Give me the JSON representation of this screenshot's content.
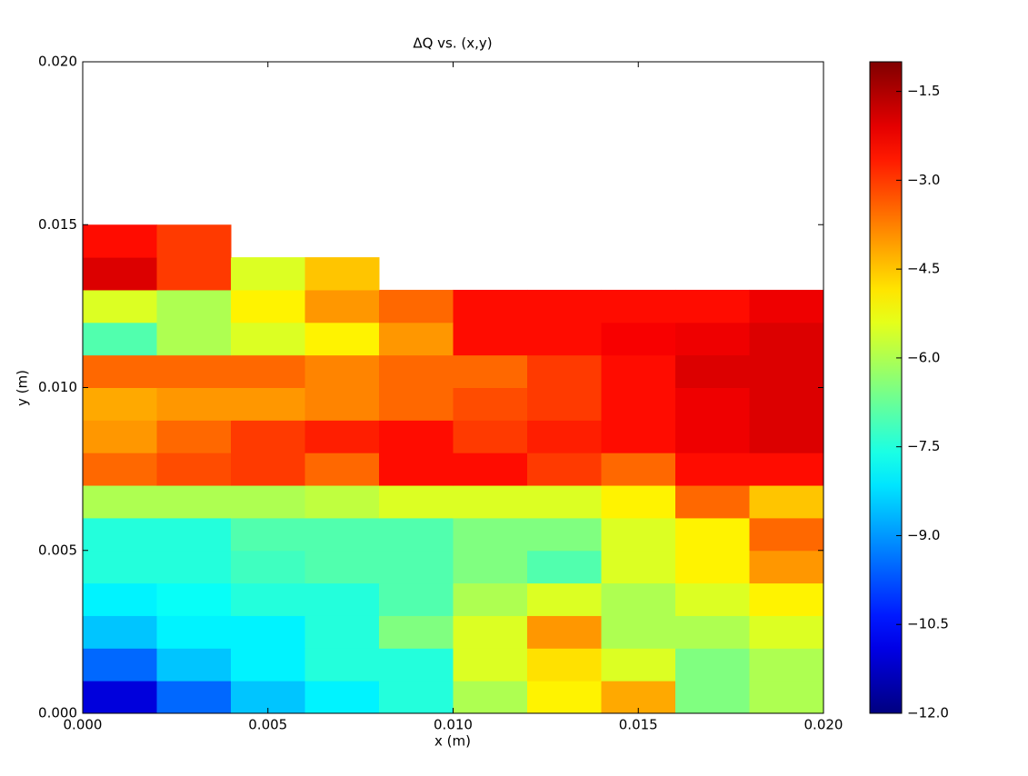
{
  "chart_data": {
    "type": "heatmap",
    "title": "ΔQ vs. (x,y)",
    "x_label": "x (m)",
    "y_label": "y (m)",
    "colormap": "jet",
    "x": [
      0.001,
      0.003,
      0.005,
      0.007,
      0.009,
      0.011,
      0.013,
      0.015,
      0.017,
      0.019
    ],
    "y": [
      0.0005,
      0.0015,
      0.0025,
      0.0035,
      0.0045,
      0.0055,
      0.0065,
      0.0075,
      0.0085,
      0.0095,
      0.0105,
      0.0115,
      0.0125,
      0.0135,
      0.0145
    ],
    "values": [
      [
        -11,
        -9.5,
        -8.5,
        -8,
        -7.5,
        -6,
        -5,
        -4.2,
        -6.5,
        -6
      ],
      [
        -9.5,
        -8.5,
        -8,
        -7.5,
        -7.5,
        -5.5,
        -4.8,
        -5.5,
        -6.5,
        -6
      ],
      [
        -8.5,
        -8,
        -8,
        -7.5,
        -6.5,
        -5.5,
        -4,
        -6,
        -6,
        -5.5
      ],
      [
        -8,
        -7.8,
        -7.5,
        -7.5,
        -7,
        -6,
        -5.5,
        -6,
        -5.5,
        -5
      ],
      [
        -7.5,
        -7.5,
        -7.2,
        -7,
        -7,
        -6.5,
        -7,
        -5.5,
        -5,
        -4
      ],
      [
        -7.5,
        -7.5,
        -7,
        -7,
        -7,
        -6.5,
        -6.5,
        -5.5,
        -5,
        -3.5
      ],
      [
        -6,
        -6,
        -6,
        -5.8,
        -5.5,
        -5.5,
        -5.5,
        -5,
        -3.5,
        -4.5
      ],
      [
        -3.5,
        -3.2,
        -3,
        -3.5,
        -2.5,
        -2.5,
        -3,
        -3.5,
        -2.5,
        -2.5
      ],
      [
        -4,
        -3.5,
        -3,
        -2.7,
        -2.5,
        -3,
        -2.7,
        -2.5,
        -2.2,
        -2
      ],
      [
        -4.2,
        -4,
        -4,
        -3.8,
        -3.5,
        -3.2,
        -3,
        -2.5,
        -2.2,
        -2
      ],
      [
        -3.5,
        -3.5,
        -3.5,
        -3.8,
        -3.5,
        -3.5,
        -3,
        -2.5,
        -2,
        -2
      ],
      [
        -7,
        -6,
        -5.5,
        -5,
        -4,
        -2.5,
        -2.5,
        -2.3,
        -2.2,
        -2
      ],
      [
        -5.5,
        -6,
        -5,
        -4,
        -3.5,
        -2.5,
        -2.5,
        -2.5,
        -2.5,
        -2.2
      ],
      [
        -2,
        -3,
        -5.5,
        -4.5,
        null,
        null,
        null,
        null,
        null,
        null
      ],
      [
        -2.5,
        -3,
        null,
        null,
        null,
        null,
        null,
        null,
        null,
        null
      ]
    ],
    "xlim": [
      0,
      0.02
    ],
    "ylim": [
      0,
      0.02
    ],
    "xticks": [
      {
        "value": 0,
        "label": "0.000"
      },
      0.005,
      {
        "value": 0.01,
        "label": "0.010"
      },
      0.015,
      {
        "value": 0.02,
        "label": "0.020"
      }
    ],
    "yticks": [
      {
        "value": 0,
        "label": "0.000"
      },
      0.005,
      {
        "value": 0.01,
        "label": "0.010"
      },
      0.015,
      {
        "value": 0.02,
        "label": "0.020"
      }
    ],
    "clim": [
      -12,
      -1
    ],
    "cticks": [
      {
        "value": -12,
        "label": "−12.0"
      },
      {
        "value": -10.5,
        "label": "−10.5"
      },
      {
        "value": -9,
        "label": "−9.0"
      },
      {
        "value": -7.5,
        "label": "−7.5"
      },
      {
        "value": -6,
        "label": "−6.0"
      },
      {
        "value": -4.5,
        "label": "−4.5"
      },
      {
        "value": -3,
        "label": "−3.0"
      },
      {
        "value": -1.5,
        "label": "−1.5"
      }
    ]
  }
}
